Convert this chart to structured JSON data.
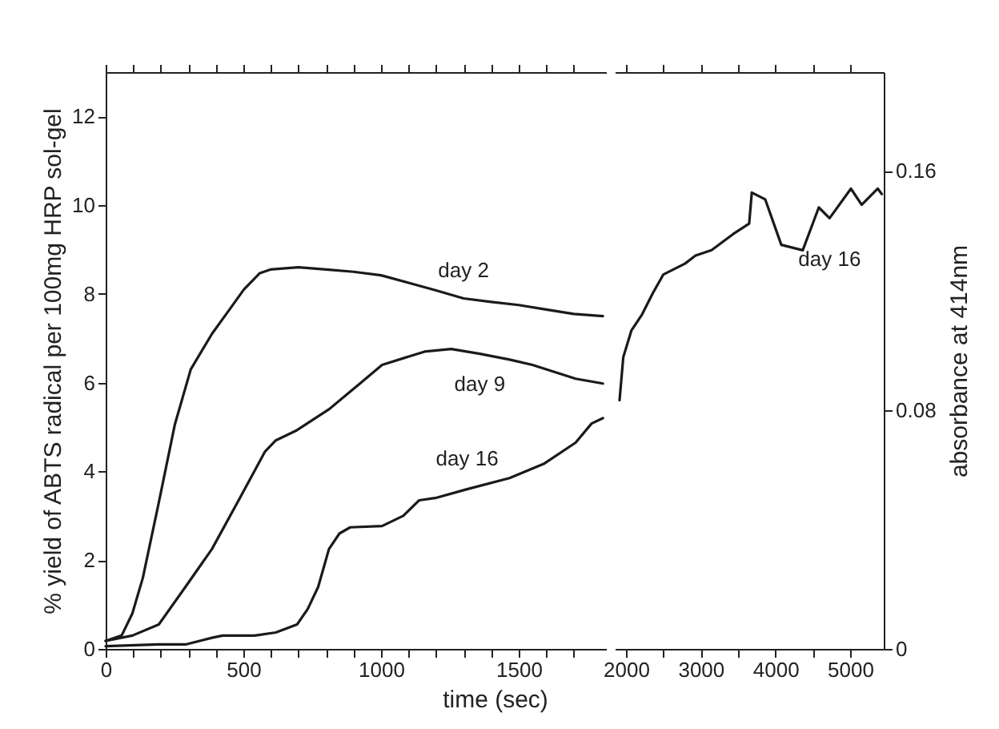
{
  "chart_data": [
    {
      "type": "line",
      "xlabel": "time (sec)",
      "ylabel": "% yield of ABTS radical per 100mg HRP sol-gel",
      "xlim": [
        0,
        1820
      ],
      "xticks": [
        0,
        {
          "value": 100,
          "label": null
        },
        {
          "value": 200,
          "label": null
        },
        {
          "value": 300,
          "label": null
        },
        {
          "value": 400,
          "label": null
        },
        500,
        {
          "value": 600,
          "label": null
        },
        {
          "value": 700,
          "label": null
        },
        {
          "value": 800,
          "label": null
        },
        {
          "value": 900,
          "label": null
        },
        1000,
        {
          "value": 1100,
          "label": null
        },
        {
          "value": 1200,
          "label": null
        },
        {
          "value": 1300,
          "label": null
        },
        {
          "value": 1400,
          "label": null
        },
        1500,
        {
          "value": 1600,
          "label": null
        },
        {
          "value": 1700,
          "label": null
        }
      ],
      "ylim": [
        0,
        13
      ],
      "yticks": [
        0,
        2,
        4,
        6,
        8,
        10,
        12
      ],
      "marker": "none",
      "line_style": "solid",
      "series": [
        {
          "name": "day 2",
          "color": "#1a1a1a",
          "x": [
            0,
            58,
            97,
            135,
            193,
            251,
            309,
            386,
            444,
            502,
            560,
            598,
            700,
            800,
            900,
            1000,
            1100,
            1200,
            1300,
            1400,
            1500,
            1600,
            1700,
            1806
          ],
          "values": [
            0.18,
            0.3,
            0.8,
            1.6,
            3.3,
            5.05,
            6.3,
            7.1,
            7.6,
            8.1,
            8.47,
            8.55,
            8.6,
            8.55,
            8.5,
            8.42,
            8.25,
            8.08,
            7.9,
            7.82,
            7.75,
            7.65,
            7.55,
            7.5
          ]
        },
        {
          "name": "day 9",
          "color": "#1a1a1a",
          "x": [
            0,
            97,
            193,
            290,
            386,
            483,
            579,
            618,
            695,
            811,
            927,
            1004,
            1158,
            1255,
            1359,
            1467,
            1550,
            1707,
            1806
          ],
          "values": [
            0.18,
            0.3,
            0.55,
            1.4,
            2.25,
            3.35,
            4.45,
            4.7,
            4.93,
            5.4,
            6.0,
            6.4,
            6.7,
            6.76,
            6.65,
            6.52,
            6.4,
            6.09,
            5.98
          ]
        },
        {
          "name": "day 16",
          "color": "#1a1a1a",
          "x": [
            0,
            193,
            290,
            386,
            425,
            541,
            618,
            695,
            734,
            772,
            811,
            849,
            888,
            1004,
            1081,
            1139,
            1197,
            1313,
            1467,
            1591,
            1707,
            1765,
            1806
          ],
          "values": [
            0.06,
            0.1,
            0.1,
            0.25,
            0.3,
            0.3,
            0.37,
            0.55,
            0.9,
            1.4,
            2.25,
            2.6,
            2.74,
            2.77,
            3.0,
            3.35,
            3.4,
            3.6,
            3.85,
            4.17,
            4.65,
            5.08,
            5.2
          ]
        }
      ]
    },
    {
      "type": "line",
      "y2label": "absorbance at 414nm",
      "xlim": [
        1850,
        5450
      ],
      "xticks": [
        2000,
        {
          "value": 2500,
          "label": null
        },
        3000,
        {
          "value": 3500,
          "label": null
        },
        4000,
        {
          "value": 4500,
          "label": null
        },
        5000
      ],
      "y2lim": [
        0,
        0.193
      ],
      "y2ticks": [
        0,
        0.08,
        0.16
      ],
      "marker": "none",
      "line_style": "solid",
      "series": [
        {
          "name": "day 16",
          "color": "#1a1a1a",
          "axis": "y2",
          "x": [
            1914,
            1964,
            2072,
            2215,
            2359,
            2501,
            2789,
            2931,
            3146,
            3434,
            3649,
            3684,
            3864,
            4079,
            4366,
            4581,
            4725,
            5011,
            5155,
            5370,
            5424
          ],
          "values": [
            0.0832,
            0.0976,
            0.1065,
            0.1119,
            0.119,
            0.1253,
            0.1289,
            0.1316,
            0.1334,
            0.1388,
            0.1423,
            0.1527,
            0.1504,
            0.1352,
            0.1334,
            0.1477,
            0.1441,
            0.154,
            0.1486,
            0.154,
            0.1522
          ]
        }
      ]
    }
  ]
}
